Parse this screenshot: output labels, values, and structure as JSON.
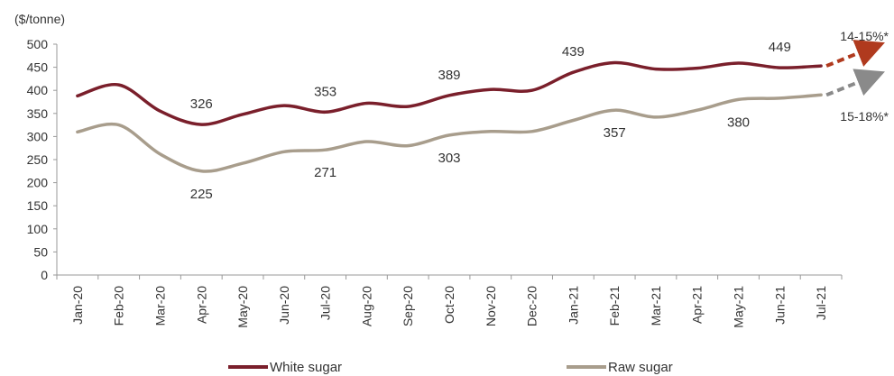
{
  "chart_data": {
    "type": "line",
    "title": "",
    "unit_label": "($/tonne)",
    "xlabel": "",
    "ylabel": "",
    "ylim": [
      0,
      500
    ],
    "yticks": [
      0,
      50,
      100,
      150,
      200,
      250,
      300,
      350,
      400,
      450,
      500
    ],
    "grid": false,
    "legend_position": "bottom",
    "categories": [
      "Jan-20",
      "Feb-20",
      "Mar-20",
      "Apr-20",
      "May-20",
      "Jun-20",
      "Jul-20",
      "Aug-20",
      "Sep-20",
      "Oct-20",
      "Nov-20",
      "Dec-20",
      "Jan-21",
      "Feb-21",
      "Mar-21",
      "Apr-21",
      "May-21",
      "Jun-21",
      "Jul-21"
    ],
    "series": [
      {
        "name": "White sugar",
        "color": "#7a1f2b",
        "values": [
          388,
          412,
          355,
          326,
          348,
          367,
          353,
          372,
          365,
          389,
          402,
          400,
          439,
          460,
          446,
          448,
          459,
          449,
          453
        ],
        "data_labels": [
          {
            "index": 3,
            "text": "326"
          },
          {
            "index": 6,
            "text": "353"
          },
          {
            "index": 9,
            "text": "389"
          },
          {
            "index": 12,
            "text": "439"
          },
          {
            "index": 17,
            "text": "449"
          }
        ]
      },
      {
        "name": "Raw sugar",
        "color": "#a89d8c",
        "values": [
          310,
          325,
          262,
          225,
          242,
          267,
          271,
          289,
          280,
          303,
          311,
          311,
          335,
          357,
          342,
          357,
          380,
          383,
          390
        ],
        "data_labels": [
          {
            "index": 3,
            "text": "225"
          },
          {
            "index": 6,
            "text": "271"
          },
          {
            "index": 9,
            "text": "303"
          },
          {
            "index": 13,
            "text": "357"
          },
          {
            "index": 16,
            "text": "380"
          }
        ]
      }
    ],
    "projections": [
      {
        "series": "White sugar",
        "text": "14-15%*",
        "color": "#b03a1e"
      },
      {
        "series": "Raw sugar",
        "text": "15-18%*",
        "color": "#8a8a8a"
      }
    ]
  }
}
